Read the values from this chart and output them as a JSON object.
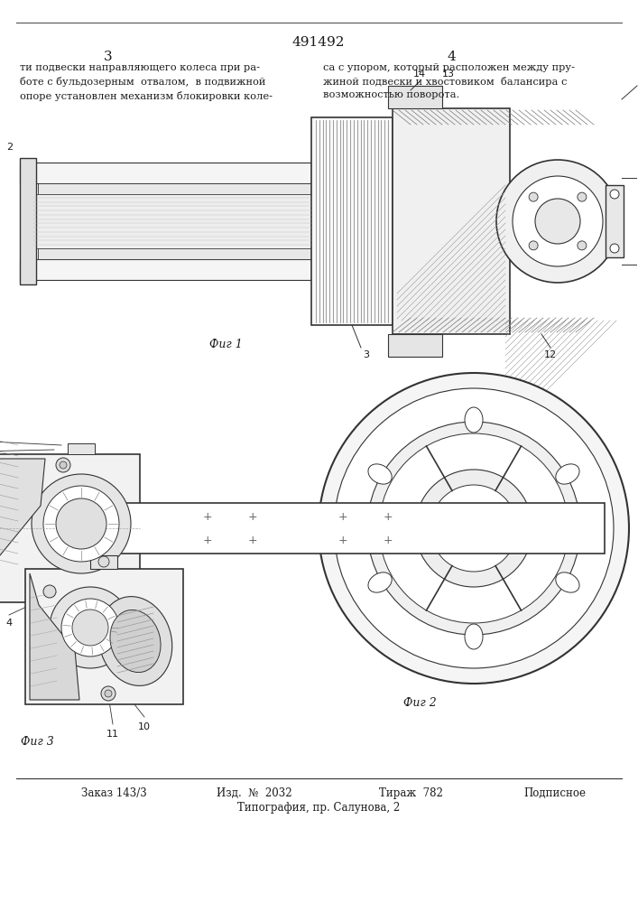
{
  "patent_number": "491492",
  "page_left": "3",
  "page_right": "4",
  "text_left": "ти подвески направляющего колеса при ра-\nботе с бульдозерным  отвалом,  в подвижной\nопоре установлен механизм блокировки коле-",
  "text_right": "са с упором, который расположен между пру-\nжиной подвески и хвостовиком  балансира с\nвозможностью поворота.",
  "fig1_label": "Фиг 1",
  "fig2_label": "Фиг 2",
  "fig3_label": "Фиг 3",
  "footer_line1_parts": [
    "Заказ 143/3",
    "Изд.  №  2032",
    "Тираж  782",
    "Подписное"
  ],
  "footer_line1_x": [
    90,
    240,
    420,
    580
  ],
  "footer_line2": "Типография, пр. Салунова, 2",
  "bg_color": "#ffffff",
  "text_color": "#1a1a1a",
  "line_color": "#000000"
}
